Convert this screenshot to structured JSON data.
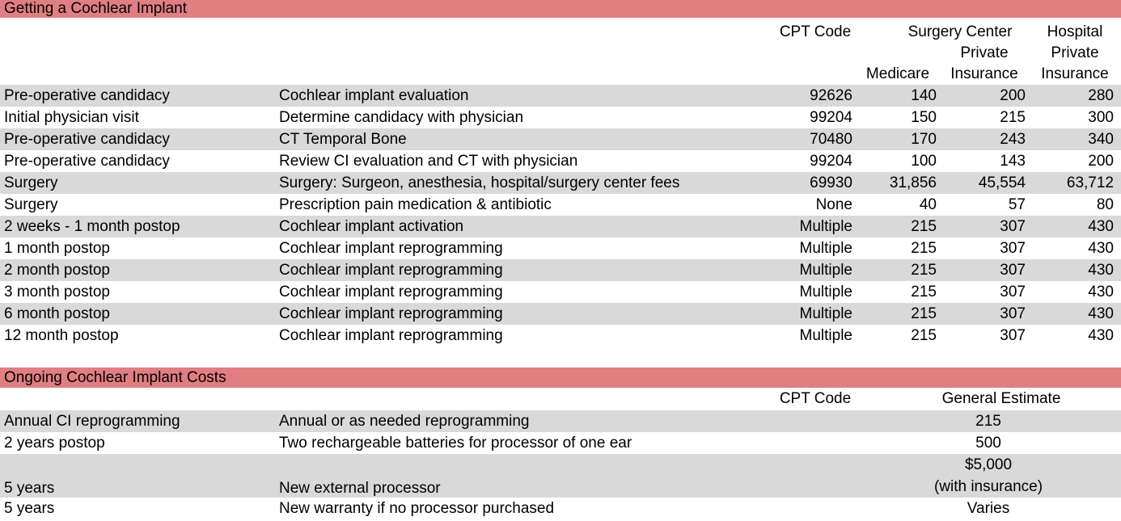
{
  "colors": {
    "title_band": "#E07E82",
    "row_stripe": "#D9D9D9"
  },
  "section1": {
    "title": "Getting a Cochlear Implant",
    "header": {
      "cpt_code": "CPT Code",
      "surgery_center": "Surgery Center",
      "hospital": "Hospital",
      "private_surgery": "Private",
      "private_hospital": "Private",
      "medicare": "Medicare",
      "insurance_surgery": "Insurance",
      "insurance_hospital": "Insurance"
    },
    "rows": [
      {
        "stage": "Pre-operative candidacy",
        "description": "Cochlear implant evaluation",
        "cpt": "92626",
        "medicare": "140",
        "surgery_private": "200",
        "hospital_private": "280"
      },
      {
        "stage": "Initial physician visit",
        "description": "Determine candidacy with physician",
        "cpt": "99204",
        "medicare": "150",
        "surgery_private": "215",
        "hospital_private": "300"
      },
      {
        "stage": "Pre-operative candidacy",
        "description": "CT Temporal Bone",
        "cpt": "70480",
        "medicare": "170",
        "surgery_private": "243",
        "hospital_private": "340"
      },
      {
        "stage": "Pre-operative candidacy",
        "description": "Review CI evaluation and CT with physician",
        "cpt": "99204",
        "medicare": "100",
        "surgery_private": "143",
        "hospital_private": "200"
      },
      {
        "stage": "Surgery",
        "description": "Surgery: Surgeon, anesthesia, hospital/surgery center fees",
        "cpt": "69930",
        "medicare": "31,856",
        "surgery_private": "45,554",
        "hospital_private": "63,712"
      },
      {
        "stage": "Surgery",
        "description": "Prescription pain medication & antibiotic",
        "cpt": "None",
        "medicare": "40",
        "surgery_private": "57",
        "hospital_private": "80"
      },
      {
        "stage": "2 weeks - 1 month postop",
        "description": "Cochlear implant activation",
        "cpt": "Multiple",
        "medicare": "215",
        "surgery_private": "307",
        "hospital_private": "430"
      },
      {
        "stage": "1 month postop",
        "description": "Cochlear implant reprogramming",
        "cpt": "Multiple",
        "medicare": "215",
        "surgery_private": "307",
        "hospital_private": "430"
      },
      {
        "stage": "2 month postop",
        "description": "Cochlear implant reprogramming",
        "cpt": "Multiple",
        "medicare": "215",
        "surgery_private": "307",
        "hospital_private": "430"
      },
      {
        "stage": "3 month postop",
        "description": "Cochlear implant reprogramming",
        "cpt": "Multiple",
        "medicare": "215",
        "surgery_private": "307",
        "hospital_private": "430"
      },
      {
        "stage": "6 month postop",
        "description": "Cochlear implant reprogramming",
        "cpt": "Multiple",
        "medicare": "215",
        "surgery_private": "307",
        "hospital_private": "430"
      },
      {
        "stage": "12 month postop",
        "description": "Cochlear implant reprogramming",
        "cpt": "Multiple",
        "medicare": "215",
        "surgery_private": "307",
        "hospital_private": "430"
      }
    ]
  },
  "section2": {
    "title": "Ongoing Cochlear Implant Costs",
    "header": {
      "cpt_code": "CPT Code",
      "general_estimate": "General Estimate"
    },
    "rows": [
      {
        "stage": "Annual CI reprogramming",
        "description": "Annual or as needed reprogramming",
        "cpt": "",
        "estimate": "215"
      },
      {
        "stage": "2 years postop",
        "description": "Two rechargeable batteries for processor of one ear",
        "cpt": "",
        "estimate": "500"
      },
      {
        "stage": "5 years",
        "description": "New external processor",
        "cpt": "",
        "estimate_line1": "$5,000",
        "estimate_line2": "(with insurance)"
      },
      {
        "stage": "5 years",
        "description": "New warranty if no processor purchased",
        "cpt": "",
        "estimate": "Varies"
      }
    ]
  }
}
